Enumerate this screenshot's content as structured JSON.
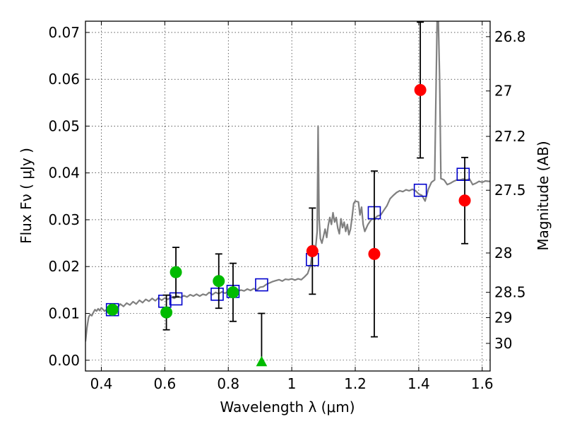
{
  "chart_data": {
    "type": "scatter",
    "xlabel": "Wavelength  λ (μm)",
    "ylabel": "Flux  Fν  ( μJy )",
    "ylabel_right": "Magnitude (AB)",
    "xlim": [
      0.35,
      1.625
    ],
    "ylim": [
      -0.0023,
      0.0724
    ],
    "x_ticks": [
      0.4,
      0.6,
      0.8,
      1.0,
      1.2,
      1.4,
      1.6
    ],
    "x_tick_labels": [
      "0.4",
      "0.6",
      "0.8",
      "1",
      "1.2",
      "1.4",
      "1.6"
    ],
    "y_ticks": [
      0.0,
      0.01,
      0.02,
      0.03,
      0.04,
      0.05,
      0.06,
      0.07
    ],
    "y_tick_labels": [
      "0.00",
      "0.01",
      "0.02",
      "0.03",
      "0.04",
      "0.05",
      "0.06",
      "0.07"
    ],
    "right_ticks": [
      {
        "label": "26.8",
        "flux": 0.0691
      },
      {
        "label": "27",
        "flux": 0.0575
      },
      {
        "label": "27.2",
        "flux": 0.0478
      },
      {
        "label": "27.5",
        "flux": 0.0363
      },
      {
        "label": "28",
        "flux": 0.0229
      },
      {
        "label": "28.5",
        "flux": 0.0145
      },
      {
        "label": "29",
        "flux": 0.0091
      },
      {
        "label": "30",
        "flux": 0.0036
      }
    ],
    "grid": true,
    "grid_style": "dotted",
    "colors": {
      "model": "#808080",
      "model_photometry": "#0000cc",
      "measured_optical": "#00bb00",
      "measured_nir": "#ff0000",
      "errorbar": "#000000"
    },
    "series": [
      {
        "kind": "line",
        "color": "#808080",
        "points": [
          [
            0.35,
            0.004
          ],
          [
            0.355,
            0.007
          ],
          [
            0.36,
            0.0092
          ],
          [
            0.365,
            0.0098
          ],
          [
            0.37,
            0.0095
          ],
          [
            0.375,
            0.0102
          ],
          [
            0.38,
            0.0108
          ],
          [
            0.385,
            0.0105
          ],
          [
            0.39,
            0.011
          ],
          [
            0.395,
            0.0106
          ],
          [
            0.4,
            0.0112
          ],
          [
            0.41,
            0.0105
          ],
          [
            0.42,
            0.011
          ],
          [
            0.43,
            0.0108
          ],
          [
            0.44,
            0.0115
          ],
          [
            0.45,
            0.0112
          ],
          [
            0.46,
            0.012
          ],
          [
            0.47,
            0.0115
          ],
          [
            0.48,
            0.0122
          ],
          [
            0.49,
            0.0118
          ],
          [
            0.5,
            0.0125
          ],
          [
            0.51,
            0.012
          ],
          [
            0.52,
            0.0128
          ],
          [
            0.53,
            0.0123
          ],
          [
            0.54,
            0.013
          ],
          [
            0.55,
            0.0126
          ],
          [
            0.56,
            0.0132
          ],
          [
            0.57,
            0.0127
          ],
          [
            0.58,
            0.0133
          ],
          [
            0.59,
            0.0128
          ],
          [
            0.6,
            0.0133
          ],
          [
            0.61,
            0.013
          ],
          [
            0.62,
            0.0135
          ],
          [
            0.63,
            0.0132
          ],
          [
            0.64,
            0.0137
          ],
          [
            0.65,
            0.0134
          ],
          [
            0.66,
            0.0138
          ],
          [
            0.67,
            0.0135
          ],
          [
            0.68,
            0.014
          ],
          [
            0.69,
            0.0137
          ],
          [
            0.7,
            0.0141
          ],
          [
            0.71,
            0.0137
          ],
          [
            0.72,
            0.0141
          ],
          [
            0.73,
            0.0139
          ],
          [
            0.74,
            0.0145
          ],
          [
            0.75,
            0.014
          ],
          [
            0.76,
            0.0145
          ],
          [
            0.77,
            0.0142
          ],
          [
            0.78,
            0.0146
          ],
          [
            0.79,
            0.0143
          ],
          [
            0.8,
            0.0148
          ],
          [
            0.81,
            0.0146
          ],
          [
            0.82,
            0.015
          ],
          [
            0.83,
            0.0147
          ],
          [
            0.84,
            0.015
          ],
          [
            0.85,
            0.0148
          ],
          [
            0.86,
            0.0152
          ],
          [
            0.87,
            0.0149
          ],
          [
            0.88,
            0.0153
          ],
          [
            0.89,
            0.015
          ],
          [
            0.9,
            0.0156
          ],
          [
            0.91,
            0.0157
          ],
          [
            0.92,
            0.0162
          ],
          [
            0.93,
            0.0165
          ],
          [
            0.94,
            0.0168
          ],
          [
            0.95,
            0.017
          ],
          [
            0.96,
            0.0172
          ],
          [
            0.97,
            0.0169
          ],
          [
            0.98,
            0.0173
          ],
          [
            0.99,
            0.0172
          ],
          [
            1.0,
            0.0174
          ],
          [
            1.01,
            0.0171
          ],
          [
            1.02,
            0.0174
          ],
          [
            1.03,
            0.0172
          ],
          [
            1.04,
            0.0178
          ],
          [
            1.05,
            0.0185
          ],
          [
            1.06,
            0.0205
          ],
          [
            1.065,
            0.0235
          ],
          [
            1.07,
            0.0245
          ],
          [
            1.075,
            0.0238
          ],
          [
            1.08,
            0.0275
          ],
          [
            1.083,
            0.05
          ],
          [
            1.086,
            0.0305
          ],
          [
            1.09,
            0.026
          ],
          [
            1.095,
            0.025
          ],
          [
            1.1,
            0.0265
          ],
          [
            1.105,
            0.028
          ],
          [
            1.11,
            0.0262
          ],
          [
            1.115,
            0.0288
          ],
          [
            1.12,
            0.0305
          ],
          [
            1.125,
            0.029
          ],
          [
            1.13,
            0.0315
          ],
          [
            1.135,
            0.0295
          ],
          [
            1.14,
            0.0305
          ],
          [
            1.145,
            0.0282
          ],
          [
            1.15,
            0.027
          ],
          [
            1.155,
            0.0302
          ],
          [
            1.16,
            0.0283
          ],
          [
            1.165,
            0.0295
          ],
          [
            1.17,
            0.0275
          ],
          [
            1.175,
            0.029
          ],
          [
            1.18,
            0.0268
          ],
          [
            1.185,
            0.028
          ],
          [
            1.19,
            0.0305
          ],
          [
            1.195,
            0.0335
          ],
          [
            1.2,
            0.034
          ],
          [
            1.21,
            0.0338
          ],
          [
            1.215,
            0.031
          ],
          [
            1.22,
            0.0327
          ],
          [
            1.225,
            0.029
          ],
          [
            1.23,
            0.0275
          ],
          [
            1.24,
            0.029
          ],
          [
            1.25,
            0.03
          ],
          [
            1.26,
            0.0302
          ],
          [
            1.27,
            0.0308
          ],
          [
            1.28,
            0.031
          ],
          [
            1.29,
            0.032
          ],
          [
            1.3,
            0.033
          ],
          [
            1.31,
            0.0345
          ],
          [
            1.32,
            0.0352
          ],
          [
            1.33,
            0.0358
          ],
          [
            1.34,
            0.0362
          ],
          [
            1.35,
            0.036
          ],
          [
            1.36,
            0.0364
          ],
          [
            1.37,
            0.0362
          ],
          [
            1.38,
            0.0365
          ],
          [
            1.39,
            0.0362
          ],
          [
            1.4,
            0.0355
          ],
          [
            1.41,
            0.0352
          ],
          [
            1.42,
            0.034
          ],
          [
            1.43,
            0.0365
          ],
          [
            1.44,
            0.038
          ],
          [
            1.45,
            0.0385
          ],
          [
            1.455,
            0.06
          ],
          [
            1.458,
            0.0724
          ],
          [
            1.462,
            0.0724
          ],
          [
            1.466,
            0.06
          ],
          [
            1.47,
            0.0388
          ],
          [
            1.48,
            0.0385
          ],
          [
            1.49,
            0.0375
          ],
          [
            1.5,
            0.0378
          ],
          [
            1.51,
            0.0382
          ],
          [
            1.52,
            0.0385
          ],
          [
            1.53,
            0.0385
          ],
          [
            1.54,
            0.0387
          ],
          [
            1.55,
            0.0385
          ],
          [
            1.56,
            0.0387
          ],
          [
            1.57,
            0.0375
          ],
          [
            1.58,
            0.0378
          ],
          [
            1.59,
            0.0382
          ],
          [
            1.6,
            0.038
          ],
          [
            1.61,
            0.0383
          ],
          [
            1.62,
            0.0382
          ],
          [
            1.625,
            0.0382
          ]
        ]
      },
      {
        "kind": "scatter",
        "marker": "open-square",
        "color": "#0000cc",
        "points": [
          [
            0.435,
            0.0108
          ],
          [
            0.6,
            0.0126
          ],
          [
            0.635,
            0.0131
          ],
          [
            0.765,
            0.0141
          ],
          [
            0.815,
            0.0147
          ],
          [
            0.905,
            0.0161
          ],
          [
            1.065,
            0.0215
          ],
          [
            1.26,
            0.0315
          ],
          [
            1.405,
            0.0363
          ],
          [
            1.54,
            0.0397
          ]
        ]
      },
      {
        "kind": "scatter",
        "marker": "filled-circle",
        "color": "#00bb00",
        "points": [
          {
            "x": 0.435,
            "y": 0.0108
          },
          {
            "x": 0.605,
            "y": 0.0102,
            "err": 0.0037
          },
          {
            "x": 0.635,
            "y": 0.0188,
            "err": 0.0053
          },
          {
            "x": 0.77,
            "y": 0.0169,
            "err": 0.0058
          },
          {
            "x": 0.815,
            "y": 0.0145,
            "err": 0.0062
          }
        ]
      },
      {
        "kind": "scatter",
        "marker": "filled-triangle",
        "color": "#00bb00",
        "points": [
          {
            "x": 0.905,
            "y": -0.0003,
            "err_up": 0.0103
          }
        ]
      },
      {
        "kind": "scatter",
        "marker": "filled-circle",
        "color": "#ff0000",
        "points": [
          {
            "x": 1.065,
            "y": 0.0233,
            "err": 0.0092
          },
          {
            "x": 1.26,
            "y": 0.0227,
            "err": 0.0177
          },
          {
            "x": 1.405,
            "y": 0.0577,
            "err": 0.0145
          },
          {
            "x": 1.545,
            "y": 0.0341,
            "err": 0.0092
          }
        ]
      }
    ]
  }
}
